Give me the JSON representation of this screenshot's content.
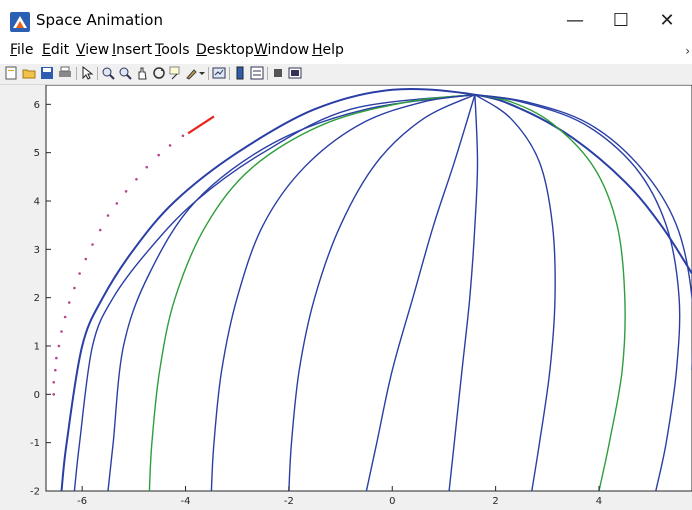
{
  "window": {
    "title": "Space Animation",
    "minimize_glyph": "—",
    "maximize_glyph": "☐",
    "close_glyph": "✕"
  },
  "menu": {
    "items": [
      {
        "label_u": "F",
        "label_rest": "ile"
      },
      {
        "label_u": "E",
        "label_rest": "dit"
      },
      {
        "label_u": "V",
        "label_rest": "iew"
      },
      {
        "label_u": "I",
        "label_rest": "nsert"
      },
      {
        "label_u": "T",
        "label_rest": "ools"
      },
      {
        "label_u": "D",
        "label_rest": "esktop"
      },
      {
        "label_u": "W",
        "label_rest": "indow"
      },
      {
        "label_u": "H",
        "label_rest": "elp"
      }
    ],
    "overflow_glyph": "›"
  },
  "toolbar": {
    "icons": [
      "new-figure-icon",
      "open-file-icon",
      "save-icon",
      "print-icon",
      "edit-plot-icon",
      "zoom-in-icon",
      "zoom-out-icon",
      "pan-icon",
      "rotate-3d-icon",
      "data-cursor-icon",
      "brush-icon",
      "brush-dropdown-icon",
      "link-plot-icon",
      "colorbar-icon",
      "legend-icon",
      "hide-plot-tools-icon",
      "show-plot-tools-icon"
    ]
  },
  "chart_data": {
    "type": "line",
    "title": "",
    "xlabel": "",
    "ylabel": "",
    "xlim": [
      -6.7,
      5.8
    ],
    "ylim": [
      -2,
      6.4
    ],
    "xticks": [
      -6,
      -4,
      -2,
      0,
      2,
      4
    ],
    "yticks": [
      -2,
      -1,
      0,
      1,
      2,
      3,
      4,
      5,
      6
    ],
    "xtick_labels": [
      "-6",
      "-4",
      "-2",
      "0",
      "2",
      "4"
    ],
    "ytick_labels": [
      "-2",
      "-1",
      "0",
      "1",
      "2",
      "3",
      "4",
      "5",
      "6"
    ],
    "colors": {
      "meridian": "#2a3fa5",
      "highlight": "#2e9e3a",
      "trajectory": "#b5458a",
      "segment": "#e8241b",
      "axes_bg": "#ffffff",
      "figure_bg": "#f0f0f0"
    },
    "series": [
      {
        "kind": "outline",
        "color": "#2a3fa5",
        "points": [
          [
            -6.4,
            -2
          ],
          [
            -6.3,
            -1
          ],
          [
            -6.0,
            1
          ],
          [
            -5.6,
            2
          ],
          [
            -5.0,
            3
          ],
          [
            -4.2,
            4
          ],
          [
            -3.0,
            5
          ],
          [
            -1.5,
            5.9
          ],
          [
            0,
            6.3
          ],
          [
            1.6,
            6.2
          ],
          [
            2.5,
            5.9
          ],
          [
            3.5,
            5.3
          ],
          [
            4.5,
            4.4
          ],
          [
            5.2,
            3.5
          ],
          [
            5.8,
            2.5
          ]
        ]
      },
      {
        "kind": "meridian",
        "color": "#2a3fa5",
        "points": [
          [
            -6.15,
            -2
          ],
          [
            -6.05,
            -1
          ],
          [
            -5.8,
            1
          ],
          [
            -5.4,
            2
          ],
          [
            -4.7,
            3
          ],
          [
            -3.8,
            4
          ],
          [
            -2.5,
            5
          ],
          [
            -0.8,
            5.9
          ],
          [
            1.6,
            6.2
          ]
        ]
      },
      {
        "kind": "meridian",
        "color": "#2a3fa5",
        "points": [
          [
            -5.5,
            -2
          ],
          [
            -5.4,
            -1
          ],
          [
            -5.2,
            1
          ],
          [
            -4.7,
            2.5
          ],
          [
            -3.8,
            4
          ],
          [
            -2.3,
            5.2
          ],
          [
            -0.5,
            5.9
          ],
          [
            1.6,
            6.2
          ]
        ]
      },
      {
        "kind": "meridian",
        "color": "#2e9e3a",
        "points": [
          [
            -4.7,
            -2
          ],
          [
            -4.65,
            -1
          ],
          [
            -4.5,
            0.5
          ],
          [
            -4.2,
            2
          ],
          [
            -3.6,
            3.5
          ],
          [
            -2.7,
            4.7
          ],
          [
            -1.3,
            5.6
          ],
          [
            0.3,
            6.05
          ],
          [
            1.6,
            6.2
          ]
        ]
      },
      {
        "kind": "meridian",
        "color": "#2a3fa5",
        "points": [
          [
            -3.5,
            -2
          ],
          [
            -3.45,
            -1
          ],
          [
            -3.3,
            0.5
          ],
          [
            -3.0,
            2
          ],
          [
            -2.5,
            3.5
          ],
          [
            -1.7,
            4.7
          ],
          [
            -0.6,
            5.6
          ],
          [
            0.6,
            6.05
          ],
          [
            1.6,
            6.2
          ]
        ]
      },
      {
        "kind": "meridian",
        "color": "#2a3fa5",
        "points": [
          [
            -2.0,
            -2
          ],
          [
            -1.95,
            -1
          ],
          [
            -1.8,
            0.5
          ],
          [
            -1.5,
            2
          ],
          [
            -1.0,
            3.5
          ],
          [
            -0.3,
            4.8
          ],
          [
            0.6,
            5.7
          ],
          [
            1.6,
            6.2
          ]
        ]
      },
      {
        "kind": "meridian",
        "color": "#2a3fa5",
        "points": [
          [
            -0.5,
            -2
          ],
          [
            -0.3,
            -1
          ],
          [
            0.0,
            0.5
          ],
          [
            0.4,
            2
          ],
          [
            0.8,
            3.5
          ],
          [
            1.2,
            4.8
          ],
          [
            1.6,
            6.2
          ]
        ]
      },
      {
        "kind": "meridian",
        "color": "#2a3fa5",
        "points": [
          [
            1.1,
            -2
          ],
          [
            1.2,
            -1
          ],
          [
            1.35,
            0.5
          ],
          [
            1.5,
            2
          ],
          [
            1.6,
            3.5
          ],
          [
            1.65,
            4.8
          ],
          [
            1.6,
            6.2
          ]
        ]
      },
      {
        "kind": "meridian",
        "color": "#2a3fa5",
        "points": [
          [
            2.7,
            -2
          ],
          [
            2.85,
            -1
          ],
          [
            3.05,
            0.5
          ],
          [
            3.15,
            2
          ],
          [
            3.1,
            3.5
          ],
          [
            2.85,
            4.8
          ],
          [
            2.3,
            5.7
          ],
          [
            1.6,
            6.2
          ]
        ]
      },
      {
        "kind": "meridian",
        "color": "#2e9e3a",
        "points": [
          [
            4.0,
            -2
          ],
          [
            4.2,
            -1
          ],
          [
            4.45,
            0.5
          ],
          [
            4.5,
            2
          ],
          [
            4.35,
            3.5
          ],
          [
            3.9,
            4.7
          ],
          [
            3.1,
            5.6
          ],
          [
            2.3,
            6.05
          ],
          [
            1.6,
            6.2
          ]
        ]
      },
      {
        "kind": "meridian",
        "color": "#2a3fa5",
        "points": [
          [
            5.1,
            -2
          ],
          [
            5.3,
            -1
          ],
          [
            5.5,
            0.5
          ],
          [
            5.55,
            2
          ],
          [
            5.3,
            3.5
          ],
          [
            4.7,
            4.7
          ],
          [
            3.7,
            5.6
          ],
          [
            2.5,
            6.05
          ],
          [
            1.6,
            6.2
          ]
        ]
      },
      {
        "kind": "meridian",
        "color": "#2a3fa5",
        "points": [
          [
            5.8,
            0.5
          ],
          [
            5.8,
            2
          ],
          [
            5.5,
            3.5
          ],
          [
            4.8,
            4.7
          ],
          [
            3.8,
            5.6
          ],
          [
            2.6,
            6.05
          ],
          [
            1.6,
            6.2
          ]
        ]
      },
      {
        "kind": "trajectory",
        "color": "#b5458a",
        "points": [
          [
            -6.55,
            0.0
          ],
          [
            -6.55,
            0.25
          ],
          [
            -6.52,
            0.5
          ],
          [
            -6.5,
            0.75
          ],
          [
            -6.45,
            1.0
          ],
          [
            -6.4,
            1.3
          ],
          [
            -6.33,
            1.6
          ],
          [
            -6.25,
            1.9
          ],
          [
            -6.15,
            2.2
          ],
          [
            -6.05,
            2.5
          ],
          [
            -5.93,
            2.8
          ],
          [
            -5.8,
            3.1
          ],
          [
            -5.65,
            3.4
          ],
          [
            -5.5,
            3.7
          ],
          [
            -5.33,
            3.95
          ],
          [
            -5.15,
            4.2
          ],
          [
            -4.95,
            4.45
          ],
          [
            -4.75,
            4.7
          ],
          [
            -4.52,
            4.95
          ],
          [
            -4.3,
            5.15
          ],
          [
            -4.05,
            5.35
          ]
        ]
      },
      {
        "kind": "segment",
        "color": "#e8241b",
        "points": [
          [
            -3.95,
            5.4
          ],
          [
            -3.45,
            5.75
          ]
        ]
      }
    ]
  }
}
